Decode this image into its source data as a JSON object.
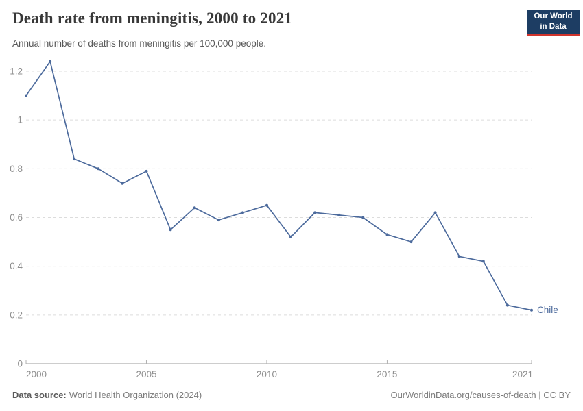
{
  "header": {
    "title": "Death rate from meningitis, 2000 to 2021",
    "subtitle": "Annual number of deaths from meningitis per 100,000 people.",
    "logo": {
      "line1": "Our World",
      "line2": "in Data"
    }
  },
  "chart_data": {
    "type": "line",
    "title": "Death rate from meningitis, 2000 to 2021",
    "subtitle": "Annual number of deaths from meningitis per 100,000 people.",
    "xlabel": "",
    "ylabel": "",
    "grid": "horizontal-dashed",
    "legend_position": "end-of-line-label",
    "xlim": [
      2000,
      2021
    ],
    "ylim": [
      0,
      1.25
    ],
    "x": [
      2000,
      2001,
      2002,
      2003,
      2004,
      2005,
      2006,
      2007,
      2008,
      2009,
      2010,
      2011,
      2012,
      2013,
      2014,
      2015,
      2016,
      2017,
      2018,
      2019,
      2020,
      2021
    ],
    "series": [
      {
        "name": "Chile",
        "color": "#4C6A9C",
        "values": [
          1.1,
          1.24,
          0.84,
          0.8,
          0.74,
          0.79,
          0.55,
          0.64,
          0.59,
          0.62,
          0.65,
          0.52,
          0.62,
          0.61,
          0.6,
          0.53,
          0.5,
          0.62,
          0.44,
          0.42,
          0.24,
          0.22
        ]
      }
    ],
    "y_ticks": [
      {
        "value": 0,
        "label": "0"
      },
      {
        "value": 0.2,
        "label": "0.2"
      },
      {
        "value": 0.4,
        "label": "0.4"
      },
      {
        "value": 0.6,
        "label": "0.6"
      },
      {
        "value": 0.8,
        "label": "0.8"
      },
      {
        "value": 1,
        "label": "1"
      },
      {
        "value": 1.2,
        "label": "1.2"
      }
    ],
    "x_ticks": [
      {
        "value": 2000,
        "label": "2000"
      },
      {
        "value": 2005,
        "label": "2005"
      },
      {
        "value": 2010,
        "label": "2010"
      },
      {
        "value": 2015,
        "label": "2015"
      },
      {
        "value": 2021,
        "label": "2021"
      }
    ]
  },
  "colors": {
    "line": "#4C6A9C",
    "gridline": "#dcdcdc",
    "axis_line": "#9b9b9b",
    "tick_mark": "#b0b0b0",
    "tick_label": "#8f8f8f",
    "logo_bg": "#1d3d63",
    "logo_bar": "#d0342c"
  },
  "footer": {
    "datasource_label": "Data source:",
    "datasource_value": "World Health Organization (2024)",
    "credit": "OurWorldinData.org/causes-of-death | CC BY"
  }
}
